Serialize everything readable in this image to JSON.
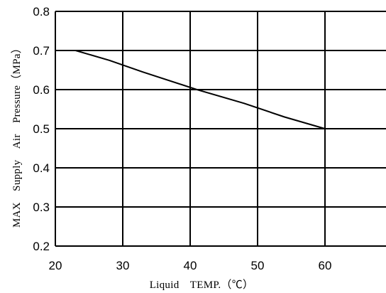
{
  "chart_data": {
    "type": "line",
    "title": "",
    "xlabel": "Liquid　TEMP.（℃）",
    "ylabel": "MAX　Supply　Air　Pressure（MPa）",
    "xlim": [
      20,
      70
    ],
    "ylim": [
      0.2,
      0.8
    ],
    "x_ticks": [
      "20",
      "30",
      "40",
      "50",
      "60"
    ],
    "y_ticks": [
      "0.8",
      "0.7",
      "0.6",
      "0.5",
      "0.4",
      "0.3",
      "0.2"
    ],
    "grid": true,
    "series": [
      {
        "color": "#000000",
        "points": [
          {
            "x": 23,
            "y": 0.7
          },
          {
            "x": 28,
            "y": 0.675
          },
          {
            "x": 33,
            "y": 0.645
          },
          {
            "x": 41,
            "y": 0.6
          },
          {
            "x": 48,
            "y": 0.565
          },
          {
            "x": 54,
            "y": 0.53
          },
          {
            "x": 60,
            "y": 0.5
          }
        ]
      }
    ]
  }
}
